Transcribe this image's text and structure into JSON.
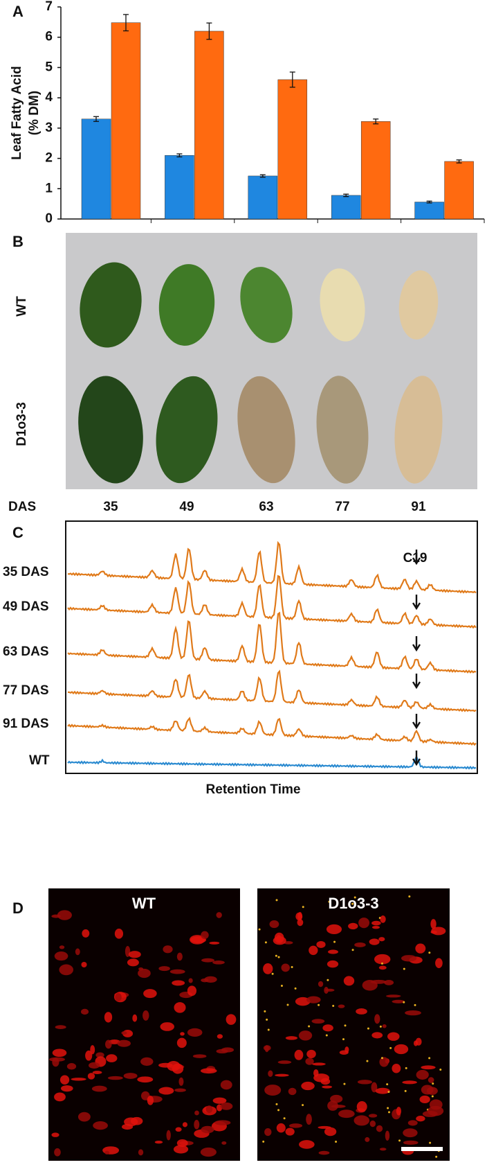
{
  "chart_data": {
    "type": "bar",
    "panel_label": "A",
    "ylabel": [
      "Leaf Fatty Acid",
      "(% DM)"
    ],
    "categories": [
      null,
      null,
      null,
      null,
      null
    ],
    "series": [
      {
        "color": "#1f87e0",
        "values": [
          3.3,
          2.1,
          1.42,
          0.78,
          0.56
        ],
        "errors": [
          0.08,
          0.05,
          0.04,
          0.04,
          0.03
        ]
      },
      {
        "color": "#ff6a10",
        "values": [
          6.48,
          6.2,
          4.6,
          3.22,
          1.9
        ],
        "errors": [
          0.27,
          0.27,
          0.25,
          0.08,
          0.05
        ]
      }
    ],
    "ylim": [
      0,
      7
    ],
    "yticks": [
      0,
      1,
      2,
      3,
      4,
      5,
      6,
      7
    ]
  },
  "panel_b": {
    "label": "B",
    "row_labels": [
      "WT",
      "D1o3-3"
    ],
    "x_title": "DAS",
    "columns": [
      "35",
      "49",
      "63",
      "77",
      "91"
    ]
  },
  "panel_c": {
    "label": "C",
    "trace_labels": [
      "35 DAS",
      "49 DAS",
      "63 DAS",
      "77 DAS",
      "91 DAS",
      "WT"
    ],
    "peak_label": "C19",
    "x_label": "Retention Time"
  },
  "panel_d": {
    "label": "D",
    "image_labels": [
      "WT",
      "D1o3-3"
    ]
  }
}
